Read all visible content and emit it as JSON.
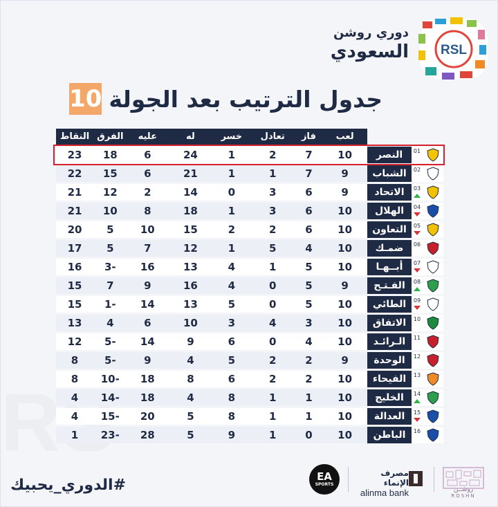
{
  "header": {
    "league_line1": "دوري روشن",
    "league_line2": "السعودي",
    "logo_text": "RSL",
    "title": "جدول الترتيب بعد الجولة",
    "round": "10"
  },
  "table": {
    "columns": {
      "played": "لعب",
      "won": "فاز",
      "draw": "تعادل",
      "lost": "خسر",
      "for": "له",
      "against": "عليه",
      "diff": "الفرق",
      "points": "النقاط"
    },
    "rows": [
      {
        "rank": "01",
        "trend": "none",
        "team": "النصر",
        "played": "10",
        "won": "7",
        "draw": "2",
        "lost": "1",
        "for": "24",
        "against": "6",
        "diff": "18",
        "points": "23",
        "color": "#f5c400"
      },
      {
        "rank": "02",
        "trend": "none",
        "team": "الشباب",
        "played": "9",
        "won": "7",
        "draw": "1",
        "lost": "1",
        "for": "21",
        "against": "6",
        "diff": "15",
        "points": "22",
        "color": "#ffffff"
      },
      {
        "rank": "03",
        "trend": "up",
        "team": "الاتحاد",
        "played": "9",
        "won": "6",
        "draw": "3",
        "lost": "0",
        "for": "14",
        "against": "2",
        "diff": "12",
        "points": "21",
        "color": "#f2c200"
      },
      {
        "rank": "04",
        "trend": "down",
        "team": "الهلال",
        "played": "10",
        "won": "6",
        "draw": "3",
        "lost": "1",
        "for": "18",
        "against": "8",
        "diff": "10",
        "points": "21",
        "color": "#1a4ea8"
      },
      {
        "rank": "05",
        "trend": "down",
        "team": "التعاون",
        "played": "10",
        "won": "6",
        "draw": "2",
        "lost": "2",
        "for": "15",
        "against": "10",
        "diff": "5",
        "points": "20",
        "color": "#f2c200"
      },
      {
        "rank": "06",
        "trend": "none",
        "team": "ضمـك",
        "played": "10",
        "won": "4",
        "draw": "5",
        "lost": "1",
        "for": "12",
        "against": "7",
        "diff": "5",
        "points": "17",
        "color": "#c8202b"
      },
      {
        "rank": "07",
        "trend": "down",
        "team": "أبــهـا",
        "played": "10",
        "won": "5",
        "draw": "1",
        "lost": "4",
        "for": "13",
        "against": "16",
        "diff": "3-",
        "points": "16",
        "color": "#ffffff"
      },
      {
        "rank": "08",
        "trend": "up",
        "team": "الفـتـح",
        "played": "9",
        "won": "5",
        "draw": "0",
        "lost": "4",
        "for": "16",
        "against": "9",
        "diff": "7",
        "points": "15",
        "color": "#2e9f4a"
      },
      {
        "rank": "09",
        "trend": "down",
        "team": "الطائي",
        "played": "10",
        "won": "5",
        "draw": "0",
        "lost": "5",
        "for": "13",
        "against": "14",
        "diff": "1-",
        "points": "15",
        "color": "#ffffff"
      },
      {
        "rank": "10",
        "trend": "none",
        "team": "الاتفاق",
        "played": "10",
        "won": "3",
        "draw": "4",
        "lost": "3",
        "for": "10",
        "against": "6",
        "diff": "4",
        "points": "13",
        "color": "#1e8a3c"
      },
      {
        "rank": "11",
        "trend": "none",
        "team": "الـرائـد",
        "played": "10",
        "won": "4",
        "draw": "0",
        "lost": "6",
        "for": "9",
        "against": "14",
        "diff": "5-",
        "points": "12",
        "color": "#c8202b"
      },
      {
        "rank": "12",
        "trend": "none",
        "team": "الوحدة",
        "played": "9",
        "won": "2",
        "draw": "2",
        "lost": "5",
        "for": "4",
        "against": "9",
        "diff": "5-",
        "points": "8",
        "color": "#c8202b"
      },
      {
        "rank": "13",
        "trend": "none",
        "team": "الفيحاء",
        "played": "10",
        "won": "2",
        "draw": "2",
        "lost": "6",
        "for": "8",
        "against": "18",
        "diff": "10-",
        "points": "8",
        "color": "#f08a24"
      },
      {
        "rank": "14",
        "trend": "up",
        "team": "الخليج",
        "played": "10",
        "won": "1",
        "draw": "1",
        "lost": "8",
        "for": "4",
        "against": "18",
        "diff": "14-",
        "points": "4",
        "color": "#2e9f4a"
      },
      {
        "rank": "15",
        "trend": "down",
        "team": "العدالة",
        "played": "10",
        "won": "1",
        "draw": "1",
        "lost": "8",
        "for": "5",
        "against": "20",
        "diff": "15-",
        "points": "4",
        "color": "#1a4ea8"
      },
      {
        "rank": "16",
        "trend": "none",
        "team": "الباطن",
        "played": "10",
        "won": "0",
        "draw": "1",
        "lost": "9",
        "for": "5",
        "against": "28",
        "diff": "23-",
        "points": "1",
        "color": "#1a4ea8"
      }
    ]
  },
  "footer": {
    "hashtag": "#الدوري_يحبيك",
    "ea_main": "EA",
    "ea_sub": "SPORTS",
    "alinma_ar": "مصرف الإنماء",
    "alinma_en": "alinma bank",
    "roshn_ar": "روشــن",
    "roshn_en": "ROSHN"
  },
  "colors": {
    "navy": "#1f2a44",
    "accent_orange": "#f3a86a",
    "highlight_red": "#d8202c",
    "trend_up": "#2eb34a",
    "trend_down": "#d8333b"
  }
}
